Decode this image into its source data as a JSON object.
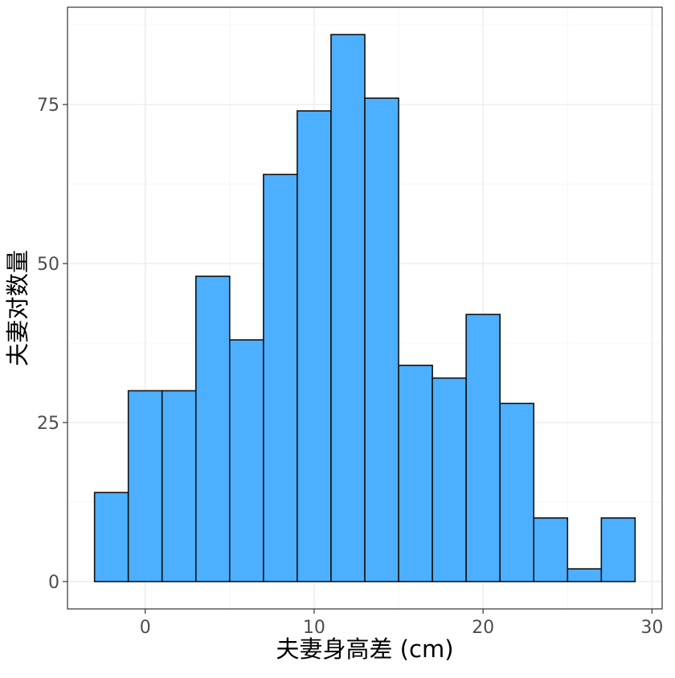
{
  "chart_data": {
    "type": "bar",
    "subtype": "histogram",
    "title": "",
    "xlabel": "夫妻身高差 (cm)",
    "ylabel": "夫妻对数量",
    "xlim": [
      -4.6,
      30.6
    ],
    "ylim": [
      -4.3,
      90.3
    ],
    "bin_width": 2,
    "x_ticks": [
      0,
      10,
      20,
      30
    ],
    "y_ticks": [
      0,
      25,
      50,
      75
    ],
    "x_tick_labels": [
      "0",
      "10",
      "20",
      "30"
    ],
    "y_tick_labels": [
      "0",
      "25",
      "50",
      "75"
    ],
    "bins": [
      {
        "start": -3,
        "end": -1,
        "count": 14
      },
      {
        "start": -1,
        "end": 1,
        "count": 30
      },
      {
        "start": 1,
        "end": 3,
        "count": 30
      },
      {
        "start": 3,
        "end": 5,
        "count": 48
      },
      {
        "start": 5,
        "end": 7,
        "count": 38
      },
      {
        "start": 7,
        "end": 9,
        "count": 64
      },
      {
        "start": 9,
        "end": 11,
        "count": 74
      },
      {
        "start": 11,
        "end": 13,
        "count": 86
      },
      {
        "start": 13,
        "end": 15,
        "count": 76
      },
      {
        "start": 15,
        "end": 17,
        "count": 34
      },
      {
        "start": 17,
        "end": 19,
        "count": 32
      },
      {
        "start": 19,
        "end": 21,
        "count": 42
      },
      {
        "start": 21,
        "end": 23,
        "count": 28
      },
      {
        "start": 23,
        "end": 25,
        "count": 10
      },
      {
        "start": 25,
        "end": 27,
        "count": 2
      },
      {
        "start": 27,
        "end": 29,
        "count": 10
      }
    ],
    "grid": true,
    "legend": "none",
    "colors": {
      "bar_fill": "#4dafff",
      "bar_stroke": "#111111",
      "panel_border": "#333333",
      "grid_major": "#ebebeb",
      "grid_minor": "#f5f5f5"
    }
  }
}
